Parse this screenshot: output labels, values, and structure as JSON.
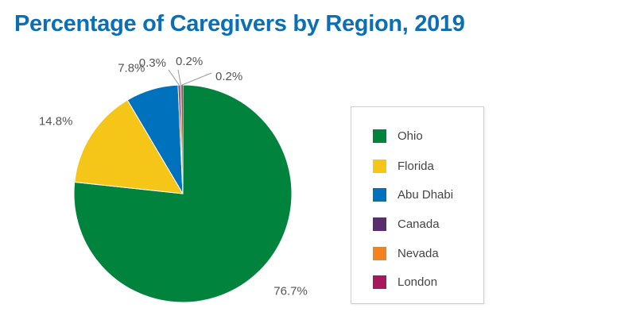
{
  "chart_data": {
    "type": "pie",
    "title": "Percentage of Caregivers by Region, 2019",
    "slices": [
      {
        "name": "Ohio",
        "value": 76.7,
        "label": "76.7%",
        "color": "#00843d"
      },
      {
        "name": "Florida",
        "value": 14.8,
        "label": "14.8%",
        "color": "#f5c518"
      },
      {
        "name": "Abu Dhabi",
        "value": 7.8,
        "label": "7.8%",
        "color": "#0071bc"
      },
      {
        "name": "Canada",
        "value": 0.3,
        "label": "0.3%",
        "color": "#5c2d6e"
      },
      {
        "name": "Nevada",
        "value": 0.2,
        "label": "0.2%",
        "color": "#f58220"
      },
      {
        "name": "London",
        "value": 0.2,
        "label": "0.2%",
        "color": "#a6195e"
      }
    ],
    "legend_position": "right"
  },
  "title_color": "#0a6fb4"
}
